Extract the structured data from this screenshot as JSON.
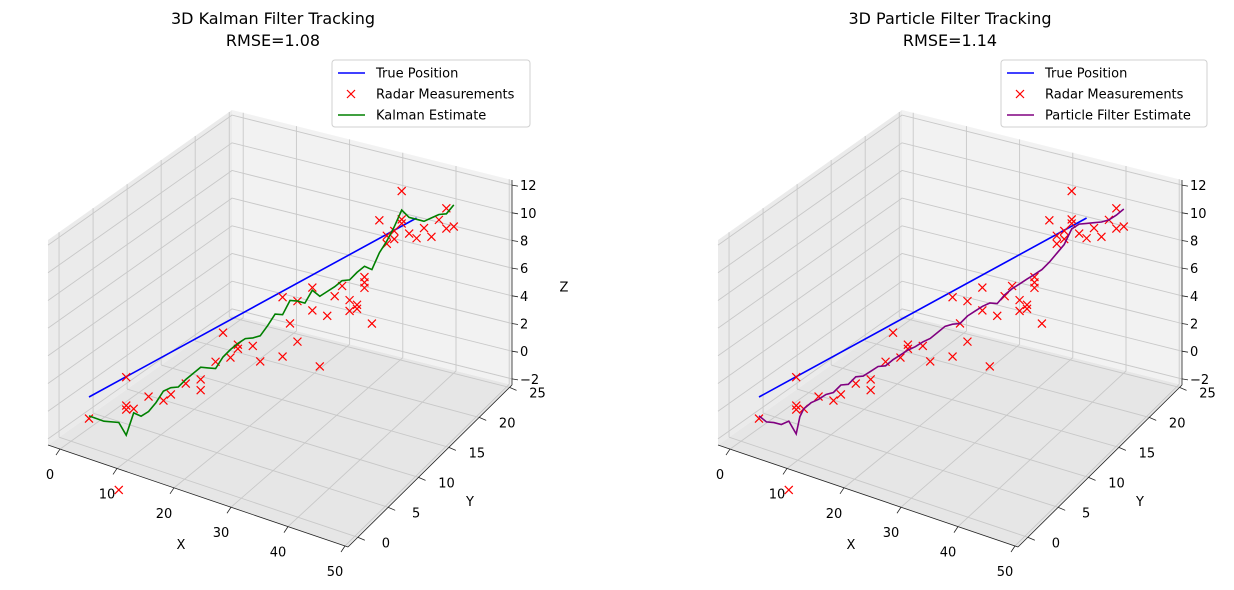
{
  "chart_data": [
    {
      "type": "line3d",
      "title": "3D Kalman Filter Tracking",
      "subtitle": "RMSE=1.08",
      "xlabel": "X",
      "ylabel": "Y",
      "zlabel": "Z",
      "xticks": [
        "0",
        "10",
        "20",
        "30",
        "40",
        "50"
      ],
      "yticks": [
        "0",
        "5",
        "10",
        "15",
        "20",
        "25"
      ],
      "zticks": [
        "−2",
        "0",
        "2",
        "4",
        "6",
        "8",
        "10",
        "12"
      ],
      "legend_position": "top-right",
      "grid": true,
      "series": [
        {
          "name": "True Position",
          "kind": "line",
          "color": "#0000ff",
          "points": [
            [
              6,
              3
            ],
            [
              50,
              9.5
            ]
          ]
        },
        {
          "name": "Radar Measurements",
          "kind": "marker-x",
          "color": "#ff0000",
          "points": [
            [
              6,
              1.4
            ],
            [
              10,
              -4.5
            ],
            [
              11,
              3.7
            ],
            [
              11,
              1.6
            ],
            [
              11,
              1.3
            ],
            [
              12,
              1.2
            ],
            [
              14,
              1.8
            ],
            [
              16,
              1.2
            ],
            [
              17,
              1.5
            ],
            [
              19,
              2.0
            ],
            [
              21,
              1.2
            ],
            [
              21,
              2.0
            ],
            [
              23,
              3.0
            ],
            [
              24,
              5.0
            ],
            [
              25,
              3.0
            ],
            [
              26,
              3.5
            ],
            [
              26,
              3.8
            ],
            [
              28,
              3.4
            ],
            [
              29,
              2.1
            ],
            [
              32,
              6.4
            ],
            [
              32,
              2.0
            ],
            [
              33,
              4.3
            ],
            [
              34,
              5.8
            ],
            [
              34,
              2.8
            ],
            [
              36,
              6.5
            ],
            [
              36,
              4.8
            ],
            [
              37,
              0.5
            ],
            [
              38,
              4.1
            ],
            [
              39,
              5.4
            ],
            [
              40,
              6.0
            ],
            [
              41,
              4.0
            ],
            [
              41,
              4.8
            ],
            [
              42,
              4.3
            ],
            [
              42,
              4.0
            ],
            [
              43,
              6.2
            ],
            [
              43,
              5.4
            ],
            [
              43,
              5.8
            ],
            [
              44,
              2.6
            ],
            [
              45,
              10.1
            ],
            [
              46,
              8.8
            ],
            [
              46,
              8.2
            ],
            [
              47,
              9.0
            ],
            [
              47,
              8.4
            ],
            [
              48,
              11.8
            ],
            [
              48,
              9.7
            ],
            [
              48,
              9.4
            ],
            [
              49,
              8.5
            ],
            [
              50,
              8.0
            ],
            [
              51,
              8.6
            ],
            [
              52,
              7.8
            ],
            [
              53,
              8.9
            ],
            [
              54,
              8.1
            ],
            [
              54,
              9.6
            ],
            [
              55,
              8.1
            ]
          ]
        },
        {
          "name": "Kalman Estimate",
          "kind": "line",
          "color": "#008000",
          "points": [
            [
              6,
              1.6
            ],
            [
              8,
              0.9
            ],
            [
              10,
              0.5
            ],
            [
              11,
              -0.6
            ],
            [
              12,
              0.9
            ],
            [
              13,
              0.5
            ],
            [
              14,
              0.7
            ],
            [
              15,
              1.2
            ],
            [
              16,
              1.9
            ],
            [
              17,
              2.0
            ],
            [
              18,
              1.9
            ],
            [
              19,
              2.3
            ],
            [
              20,
              2.6
            ],
            [
              21,
              2.9
            ],
            [
              22,
              2.7
            ],
            [
              23,
              2.5
            ],
            [
              24,
              3.2
            ],
            [
              25,
              3.6
            ],
            [
              26,
              3.9
            ],
            [
              27,
              4.1
            ],
            [
              28,
              4.0
            ],
            [
              29,
              4.0
            ],
            [
              30,
              4.6
            ],
            [
              31,
              5.3
            ],
            [
              32,
              5.1
            ],
            [
              33,
              6.0
            ],
            [
              34,
              5.8
            ],
            [
              35,
              5.5
            ],
            [
              36,
              6.3
            ],
            [
              37,
              5.7
            ],
            [
              38,
              5.9
            ],
            [
              39,
              6.1
            ],
            [
              40,
              6.4
            ],
            [
              41,
              6.3
            ],
            [
              42,
              6.7
            ],
            [
              43,
              7.0
            ],
            [
              44,
              6.6
            ],
            [
              45,
              7.7
            ],
            [
              46,
              8.4
            ],
            [
              47,
              9.3
            ],
            [
              48,
              10.4
            ],
            [
              49,
              9.7
            ],
            [
              50,
              9.4
            ],
            [
              51,
              9.1
            ],
            [
              52,
              9.2
            ],
            [
              53,
              9.3
            ],
            [
              54,
              9.2
            ],
            [
              55,
              9.7
            ]
          ]
        }
      ]
    },
    {
      "type": "line3d",
      "title": "3D Particle Filter Tracking",
      "subtitle": "RMSE=1.14",
      "xlabel": "X",
      "ylabel": "Y",
      "zlabel": "",
      "xticks": [
        "0",
        "10",
        "20",
        "30",
        "40",
        "50"
      ],
      "yticks": [
        "0",
        "5",
        "10",
        "15",
        "20",
        "25"
      ],
      "zticks": [
        "−2",
        "0",
        "2",
        "4",
        "6",
        "8",
        "10",
        "12"
      ],
      "legend_position": "top-right",
      "grid": true,
      "series": [
        {
          "name": "True Position",
          "kind": "line",
          "color": "#0000ff",
          "points": [
            [
              6,
              3
            ],
            [
              50,
              9.5
            ]
          ]
        },
        {
          "name": "Radar Measurements",
          "kind": "marker-x",
          "color": "#ff0000",
          "points": [
            [
              6,
              1.4
            ],
            [
              10,
              -4.5
            ],
            [
              11,
              3.7
            ],
            [
              11,
              1.6
            ],
            [
              11,
              1.3
            ],
            [
              12,
              1.2
            ],
            [
              14,
              1.8
            ],
            [
              16,
              1.2
            ],
            [
              17,
              1.5
            ],
            [
              19,
              2.0
            ],
            [
              21,
              1.2
            ],
            [
              21,
              2.0
            ],
            [
              23,
              3.0
            ],
            [
              24,
              5.0
            ],
            [
              25,
              3.0
            ],
            [
              26,
              3.5
            ],
            [
              26,
              3.8
            ],
            [
              28,
              3.4
            ],
            [
              29,
              2.1
            ],
            [
              32,
              6.4
            ],
            [
              32,
              2.0
            ],
            [
              33,
              4.3
            ],
            [
              34,
              5.8
            ],
            [
              34,
              2.8
            ],
            [
              36,
              6.5
            ],
            [
              36,
              4.8
            ],
            [
              37,
              0.5
            ],
            [
              38,
              4.1
            ],
            [
              39,
              5.4
            ],
            [
              40,
              6.0
            ],
            [
              41,
              4.0
            ],
            [
              41,
              4.8
            ],
            [
              42,
              4.3
            ],
            [
              42,
              4.0
            ],
            [
              43,
              6.2
            ],
            [
              43,
              5.4
            ],
            [
              43,
              5.8
            ],
            [
              44,
              2.6
            ],
            [
              45,
              10.1
            ],
            [
              46,
              8.8
            ],
            [
              46,
              8.2
            ],
            [
              47,
              9.0
            ],
            [
              47,
              8.4
            ],
            [
              48,
              11.8
            ],
            [
              48,
              9.7
            ],
            [
              48,
              9.4
            ],
            [
              49,
              8.5
            ],
            [
              50,
              8.0
            ],
            [
              51,
              8.6
            ],
            [
              52,
              7.8
            ],
            [
              53,
              8.9
            ],
            [
              54,
              8.1
            ],
            [
              54,
              9.6
            ],
            [
              55,
              8.1
            ]
          ]
        },
        {
          "name": "Particle Filter Estimate",
          "kind": "line",
          "color": "#800080",
          "points": [
            [
              6,
              1.6
            ],
            [
              7,
              1.0
            ],
            [
              8,
              0.8
            ],
            [
              9,
              0.5
            ],
            [
              10,
              0.6
            ],
            [
              11,
              -0.5
            ],
            [
              11.5,
              0.7
            ],
            [
              12,
              1.2
            ],
            [
              13,
              1.5
            ],
            [
              14,
              1.6
            ],
            [
              15,
              1.8
            ],
            [
              16,
              1.8
            ],
            [
              17,
              2.2
            ],
            [
              18,
              2.1
            ],
            [
              19,
              2.5
            ],
            [
              20,
              2.4
            ],
            [
              21,
              2.6
            ],
            [
              22,
              2.8
            ],
            [
              23,
              2.7
            ],
            [
              24,
              3.0
            ],
            [
              25,
              3.2
            ],
            [
              26,
              3.4
            ],
            [
              27,
              3.5
            ],
            [
              28,
              3.7
            ],
            [
              29,
              3.8
            ],
            [
              30,
              4.1
            ],
            [
              31,
              4.4
            ],
            [
              32,
              4.4
            ],
            [
              33,
              4.3
            ],
            [
              34,
              4.7
            ],
            [
              35,
              4.9
            ],
            [
              36,
              5.1
            ],
            [
              37,
              5.2
            ],
            [
              38,
              5.0
            ],
            [
              39,
              5.5
            ],
            [
              40,
              5.8
            ],
            [
              41,
              6.0
            ],
            [
              42,
              6.2
            ],
            [
              43,
              6.4
            ],
            [
              44,
              6.6
            ],
            [
              45,
              7.0
            ],
            [
              46,
              7.5
            ],
            [
              47,
              8.0
            ],
            [
              48,
              9.0
            ],
            [
              49,
              9.2
            ],
            [
              50,
              9.1
            ],
            [
              51,
              9.0
            ],
            [
              52,
              8.9
            ],
            [
              53,
              8.9
            ],
            [
              54,
              9.1
            ],
            [
              55,
              9.4
            ]
          ]
        }
      ]
    }
  ]
}
